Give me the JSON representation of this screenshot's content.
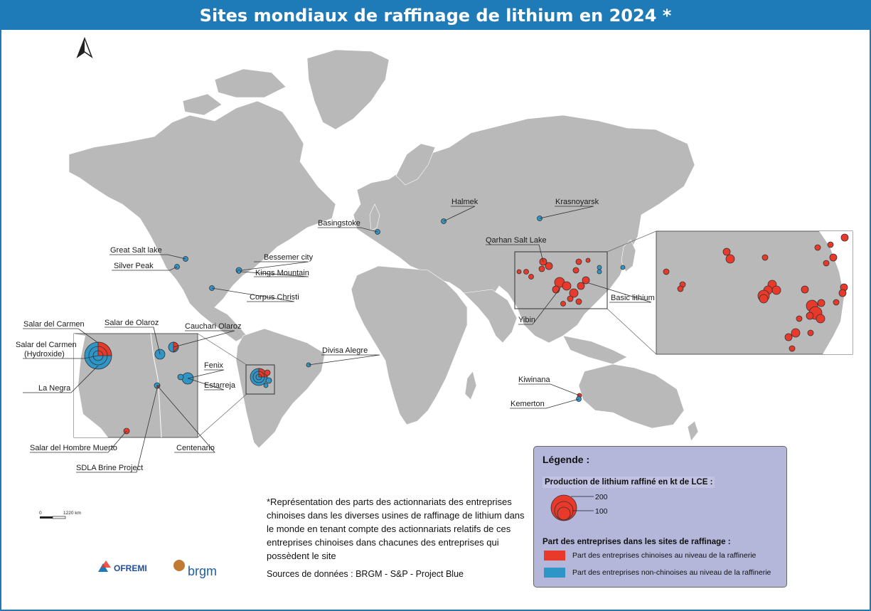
{
  "title": "Sites mondiaux de raffinage de lithium en 2024 *",
  "colors": {
    "header": "#1f7ab8",
    "land": "#b9b9b9",
    "chinese": "#e8392a",
    "non_chinese": "#2f95c7",
    "legend_bg": "#b4b6da"
  },
  "sites": {
    "great_salt_lake": "Great Salt lake",
    "silver_peak": "Silver Peak",
    "bessemer_city": "Bessemer city",
    "kings_mountain": "Kings Mountain",
    "corpus_christi": "Corpus Christi",
    "basingstoke": "Basingstoke",
    "halmek": "Halmek",
    "krasnoyarsk": "Krasnoyarsk",
    "qarhan": "Qarhan Salt Lake",
    "basic_lithium": "Basic lithium",
    "yibin": "Yibin",
    "divisa_alegre": "Divisa Alegre",
    "kiwinana": "Kiwinana",
    "kemerton": "Kemerton",
    "salar_del_carmen": "Salar del Carmen",
    "salar_del_carmen_hydroxide": "Salar del Carmen\n(Hydroxide)",
    "la_negra": "La Negra",
    "salar_de_olaroz": "Salar de Olaroz",
    "cauchari_olaroz": "Cauchari Olaroz",
    "fenix": "Fenix",
    "estarreja": "Estarreja",
    "salar_del_hombre_muerto": "Salar del Hombre Muerto",
    "centenario": "Centenario",
    "sdla": "SDLA Brine Project"
  },
  "scale": {
    "zero": "0",
    "distance": "1220 km"
  },
  "legend": {
    "title": "Légende :",
    "production": "Production de lithium raffiné en kt de LCE :",
    "size_200": "200",
    "size_100": "100",
    "part_title": "Part des entreprises dans les sites de raffinage :",
    "chinese": "Part des entreprises chinoises au niveau de la raffinerie",
    "non_chinese": "Part des entreprises non-chinoises au niveau de la raffinerie"
  },
  "note": "*Représentation des parts des actionnariats des entreprises chinoises dans les diverses usines de raffinage de lithium dans le monde en tenant compte des actionnariats relatifs de ces entreprises chinoises dans chacunes des entreprises qui possèdent le site",
  "sources": "Sources de données : BRGM - S&P - Project Blue",
  "logos": {
    "ofremi": "OFREMI",
    "brgm": "brgm"
  }
}
